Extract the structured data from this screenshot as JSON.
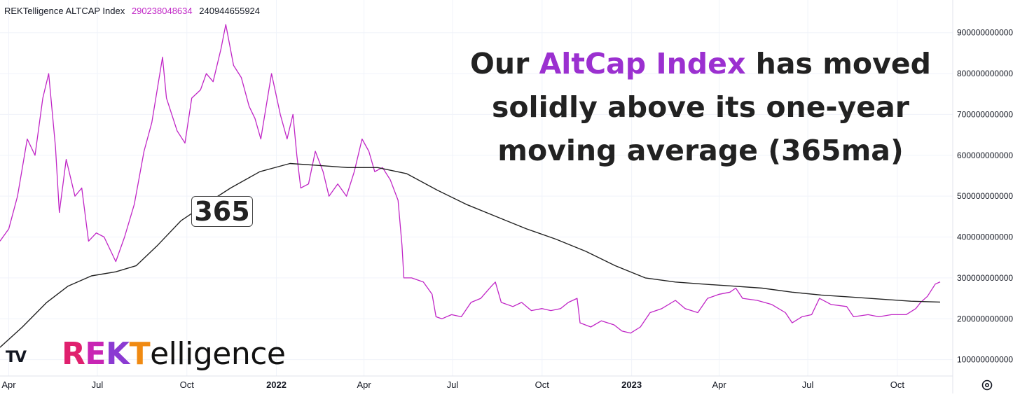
{
  "legend": {
    "symbol": "REKTelligence ALTCAP Index",
    "value_1": "290238048634",
    "value_1_color": "#c026c6",
    "value_2": "240944655924"
  },
  "headline": {
    "pre": "Our ",
    "highlight": "AltCap Index",
    "highlight_color": "#9b30d0",
    "line1_post": " has moved",
    "line2": "solidly above its one-year",
    "line3": "moving average (365ma)"
  },
  "ma_badge": "365",
  "brand": {
    "r": "R",
    "e": "E",
    "k": "K",
    "t": "T",
    "rest": "elligence"
  },
  "tv_logo": "TV",
  "icons": {
    "settings": "settings-gear-icon",
    "tv": "tradingview-logo-icon"
  },
  "chart_data": {
    "type": "line",
    "x_axis": {
      "labels": [
        "Apr",
        "Jul",
        "Oct",
        "2022",
        "Apr",
        "Jul",
        "Oct",
        "2023",
        "Apr",
        "Jul",
        "Oct"
      ],
      "bold": [
        false,
        false,
        false,
        true,
        false,
        false,
        false,
        true,
        false,
        false,
        false
      ],
      "range": [
        "2021-03-23",
        "2023-11-14"
      ]
    },
    "y_axis": {
      "ticks": [
        100000000000,
        200000000000,
        300000000000,
        400000000000,
        500000000000,
        600000000000,
        700000000000,
        800000000000,
        900000000000
      ],
      "tick_labels": [
        "100000000000",
        "200000000000",
        "300000000000",
        "400000000000",
        "500000000000",
        "600000000000",
        "700000000000",
        "800000000000",
        "900000000000"
      ],
      "range": [
        60000000000,
        980000000000
      ],
      "position": "right"
    },
    "grid": true,
    "series": [
      {
        "color": "#c026c6",
        "points": [
          [
            "2021-03-23",
            390000000000
          ],
          [
            "2021-04-01",
            420000000000
          ],
          [
            "2021-04-10",
            500000000000
          ],
          [
            "2021-04-20",
            640000000000
          ],
          [
            "2021-04-28",
            600000000000
          ],
          [
            "2021-05-06",
            740000000000
          ],
          [
            "2021-05-12",
            800000000000
          ],
          [
            "2021-05-19",
            620000000000
          ],
          [
            "2021-05-23",
            460000000000
          ],
          [
            "2021-05-30",
            590000000000
          ],
          [
            "2021-06-08",
            500000000000
          ],
          [
            "2021-06-15",
            520000000000
          ],
          [
            "2021-06-22",
            390000000000
          ],
          [
            "2021-06-30",
            410000000000
          ],
          [
            "2021-07-08",
            400000000000
          ],
          [
            "2021-07-20",
            340000000000
          ],
          [
            "2021-07-29",
            400000000000
          ],
          [
            "2021-08-08",
            480000000000
          ],
          [
            "2021-08-18",
            610000000000
          ],
          [
            "2021-08-26",
            680000000000
          ],
          [
            "2021-09-06",
            840000000000
          ],
          [
            "2021-09-10",
            740000000000
          ],
          [
            "2021-09-21",
            660000000000
          ],
          [
            "2021-09-29",
            630000000000
          ],
          [
            "2021-10-06",
            740000000000
          ],
          [
            "2021-10-15",
            760000000000
          ],
          [
            "2021-10-21",
            800000000000
          ],
          [
            "2021-10-28",
            780000000000
          ],
          [
            "2021-11-05",
            860000000000
          ],
          [
            "2021-11-10",
            920000000000
          ],
          [
            "2021-11-18",
            820000000000
          ],
          [
            "2021-11-26",
            790000000000
          ],
          [
            "2021-12-04",
            720000000000
          ],
          [
            "2021-12-10",
            690000000000
          ],
          [
            "2021-12-16",
            640000000000
          ],
          [
            "2021-12-27",
            800000000000
          ],
          [
            "2022-01-05",
            700000000000
          ],
          [
            "2022-01-12",
            640000000000
          ],
          [
            "2022-01-18",
            700000000000
          ],
          [
            "2022-01-22",
            600000000000
          ],
          [
            "2022-01-26",
            520000000000
          ],
          [
            "2022-02-03",
            530000000000
          ],
          [
            "2022-02-10",
            610000000000
          ],
          [
            "2022-02-18",
            560000000000
          ],
          [
            "2022-02-24",
            500000000000
          ],
          [
            "2022-03-05",
            530000000000
          ],
          [
            "2022-03-14",
            500000000000
          ],
          [
            "2022-03-22",
            560000000000
          ],
          [
            "2022-03-30",
            640000000000
          ],
          [
            "2022-04-06",
            610000000000
          ],
          [
            "2022-04-12",
            560000000000
          ],
          [
            "2022-04-20",
            570000000000
          ],
          [
            "2022-04-28",
            540000000000
          ],
          [
            "2022-05-06",
            490000000000
          ],
          [
            "2022-05-10",
            380000000000
          ],
          [
            "2022-05-12",
            300000000000
          ],
          [
            "2022-05-20",
            300000000000
          ],
          [
            "2022-06-01",
            290000000000
          ],
          [
            "2022-06-10",
            260000000000
          ],
          [
            "2022-06-14",
            205000000000
          ],
          [
            "2022-06-20",
            200000000000
          ],
          [
            "2022-06-30",
            210000000000
          ],
          [
            "2022-07-10",
            205000000000
          ],
          [
            "2022-07-20",
            240000000000
          ],
          [
            "2022-07-30",
            250000000000
          ],
          [
            "2022-08-10",
            280000000000
          ],
          [
            "2022-08-14",
            290000000000
          ],
          [
            "2022-08-20",
            240000000000
          ],
          [
            "2022-09-01",
            230000000000
          ],
          [
            "2022-09-10",
            240000000000
          ],
          [
            "2022-09-20",
            220000000000
          ],
          [
            "2022-10-01",
            225000000000
          ],
          [
            "2022-10-10",
            220000000000
          ],
          [
            "2022-10-20",
            225000000000
          ],
          [
            "2022-10-28",
            240000000000
          ],
          [
            "2022-11-06",
            250000000000
          ],
          [
            "2022-11-09",
            190000000000
          ],
          [
            "2022-11-20",
            180000000000
          ],
          [
            "2022-12-01",
            195000000000
          ],
          [
            "2022-12-14",
            185000000000
          ],
          [
            "2022-12-22",
            170000000000
          ],
          [
            "2022-12-31",
            165000000000
          ],
          [
            "2023-01-10",
            180000000000
          ],
          [
            "2023-01-20",
            215000000000
          ],
          [
            "2023-02-01",
            225000000000
          ],
          [
            "2023-02-15",
            245000000000
          ],
          [
            "2023-02-25",
            225000000000
          ],
          [
            "2023-03-10",
            215000000000
          ],
          [
            "2023-03-20",
            250000000000
          ],
          [
            "2023-04-01",
            260000000000
          ],
          [
            "2023-04-12",
            265000000000
          ],
          [
            "2023-04-18",
            275000000000
          ],
          [
            "2023-04-25",
            250000000000
          ],
          [
            "2023-05-10",
            245000000000
          ],
          [
            "2023-05-25",
            235000000000
          ],
          [
            "2023-06-08",
            215000000000
          ],
          [
            "2023-06-15",
            190000000000
          ],
          [
            "2023-06-25",
            205000000000
          ],
          [
            "2023-07-05",
            210000000000
          ],
          [
            "2023-07-13",
            250000000000
          ],
          [
            "2023-07-25",
            235000000000
          ],
          [
            "2023-08-10",
            230000000000
          ],
          [
            "2023-08-17",
            205000000000
          ],
          [
            "2023-09-01",
            210000000000
          ],
          [
            "2023-09-12",
            205000000000
          ],
          [
            "2023-09-25",
            210000000000
          ],
          [
            "2023-10-10",
            210000000000
          ],
          [
            "2023-10-20",
            225000000000
          ],
          [
            "2023-10-25",
            240000000000
          ],
          [
            "2023-11-01",
            255000000000
          ],
          [
            "2023-11-09",
            285000000000
          ],
          [
            "2023-11-14",
            290238048634
          ]
        ]
      },
      {
        "color": "#222222",
        "points": [
          [
            "2021-03-23",
            130000000000
          ],
          [
            "2021-04-15",
            180000000000
          ],
          [
            "2021-05-10",
            240000000000
          ],
          [
            "2021-06-01",
            280000000000
          ],
          [
            "2021-06-25",
            305000000000
          ],
          [
            "2021-07-20",
            315000000000
          ],
          [
            "2021-08-10",
            330000000000
          ],
          [
            "2021-09-01",
            380000000000
          ],
          [
            "2021-09-25",
            440000000000
          ],
          [
            "2021-10-20",
            480000000000
          ],
          [
            "2021-11-15",
            520000000000
          ],
          [
            "2021-12-15",
            560000000000
          ],
          [
            "2022-01-15",
            580000000000
          ],
          [
            "2022-02-15",
            575000000000
          ],
          [
            "2022-03-15",
            570000000000
          ],
          [
            "2022-04-15",
            570000000000
          ],
          [
            "2022-05-15",
            555000000000
          ],
          [
            "2022-06-15",
            515000000000
          ],
          [
            "2022-07-15",
            480000000000
          ],
          [
            "2022-08-15",
            450000000000
          ],
          [
            "2022-09-15",
            420000000000
          ],
          [
            "2022-10-15",
            395000000000
          ],
          [
            "2022-11-15",
            365000000000
          ],
          [
            "2022-12-15",
            330000000000
          ],
          [
            "2023-01-15",
            300000000000
          ],
          [
            "2023-02-15",
            290000000000
          ],
          [
            "2023-03-15",
            285000000000
          ],
          [
            "2023-04-15",
            280000000000
          ],
          [
            "2023-05-15",
            275000000000
          ],
          [
            "2023-06-15",
            265000000000
          ],
          [
            "2023-07-15",
            258000000000
          ],
          [
            "2023-08-15",
            253000000000
          ],
          [
            "2023-09-15",
            248000000000
          ],
          [
            "2023-10-15",
            243000000000
          ],
          [
            "2023-11-14",
            240944655924
          ]
        ]
      }
    ]
  }
}
